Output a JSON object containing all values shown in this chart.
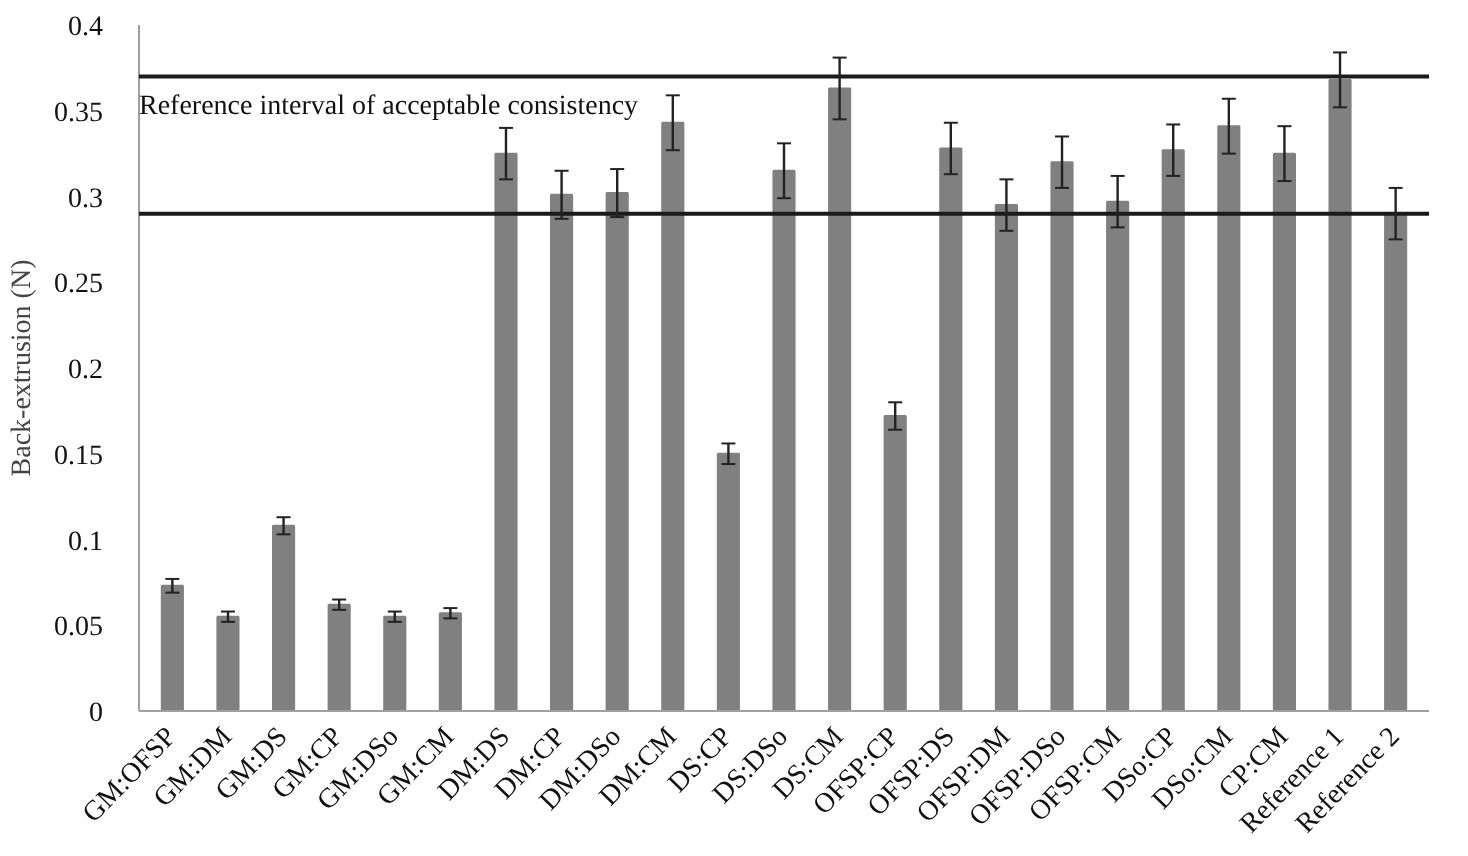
{
  "chart_data": {
    "type": "bar",
    "ylabel": "Back-extrusion (N)",
    "categories": [
      "GM:OFSP",
      "GM:DM",
      "GM:DS",
      "GM:CP",
      "GM:DSo",
      "GM:CM",
      "DM:DS",
      "DM:CP",
      "DM:DSo",
      "DM:CM",
      "DS:CP",
      "DS:DSo",
      "DS:CM",
      "OFSP:CP",
      "OFSP:DS",
      "OFSP:DM",
      "OFSP:DSo",
      "OFSP:CM",
      "DSo:CP",
      "DSo:CM",
      "CP:CM",
      "Reference 1",
      "Reference 2"
    ],
    "values": [
      0.073,
      0.055,
      0.108,
      0.062,
      0.055,
      0.057,
      0.325,
      0.301,
      0.302,
      0.343,
      0.15,
      0.315,
      0.363,
      0.172,
      0.328,
      0.295,
      0.32,
      0.297,
      0.327,
      0.341,
      0.325,
      0.368,
      0.29
    ],
    "errors": [
      0.004,
      0.003,
      0.005,
      0.003,
      0.003,
      0.003,
      0.015,
      0.014,
      0.014,
      0.016,
      0.006,
      0.016,
      0.018,
      0.008,
      0.015,
      0.015,
      0.015,
      0.015,
      0.015,
      0.016,
      0.016,
      0.016,
      0.015
    ],
    "color": "#808080",
    "ylim": [
      0,
      0.4
    ],
    "yticks": [
      0,
      0.05,
      0.1,
      0.15,
      0.2,
      0.25,
      0.3,
      0.35,
      0.4
    ],
    "ref_lines": [
      {
        "axis": "y",
        "value": 0.37,
        "color": "#1a1a1a"
      },
      {
        "axis": "y",
        "value": 0.29,
        "color": "#1a1a1a"
      }
    ],
    "annotations": [
      "Reference interval of acceptable consistency"
    ],
    "grid": false
  }
}
